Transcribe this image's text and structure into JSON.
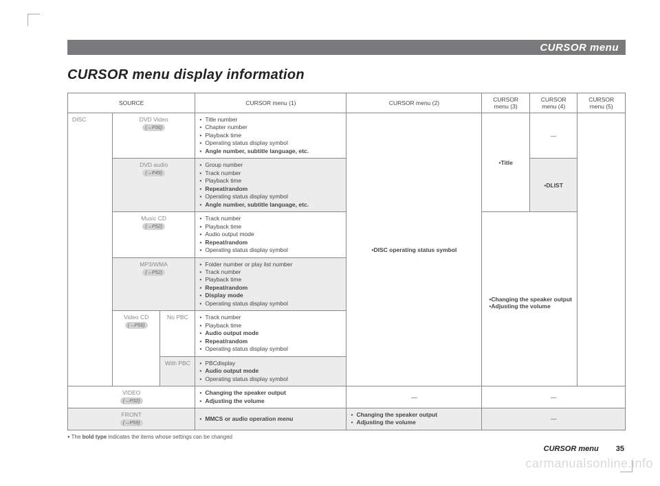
{
  "header": {
    "title": "CURSOR menu"
  },
  "page_title": "CURSOR menu display information",
  "table": {
    "headers": {
      "source": "SOURCE",
      "m1": "CURSOR menu (1)",
      "m2": "CURSOR menu (2)",
      "m3": "CURSOR\nmenu (3)",
      "m4": "CURSOR\nmenu (4)",
      "m5": "CURSOR\nmenu (5)"
    },
    "disc_label": "DISC",
    "rows": {
      "dvd_video": {
        "label": "DVD Video",
        "ref": "(→P36)",
        "m1": [
          "Title number",
          "Chapter number",
          "Playback time",
          "Operating status display symbol",
          "Angle number, subtitle language, etc."
        ],
        "m1_bold": [
          4
        ]
      },
      "dvd_audio": {
        "label": "DVD audio",
        "ref": "(→P49)",
        "m1": [
          "Group number",
          "Track number",
          "Playback time",
          "Repeat/random",
          "Operating status display symbol",
          "Angle number, subtitle language, etc."
        ],
        "m1_bold": [
          3,
          5
        ]
      },
      "music_cd": {
        "label": "Music CD",
        "ref": "(→P52)",
        "m1": [
          "Track number",
          "Playback time",
          "Audio output mode",
          "Repeat/random",
          "Operating status display symbol"
        ],
        "m1_bold": [
          3
        ]
      },
      "mp3": {
        "label": "MP3/WMA",
        "ref": "(→P52)",
        "m1": [
          "Folder number or play list number",
          "Track number",
          "Playback time",
          "Repeat/random",
          "Display mode",
          "Operating status display symbol"
        ],
        "m1_bold": [
          3,
          4
        ]
      },
      "vcd": {
        "label": "Video CD",
        "ref": "(→P56)",
        "nopbc_label": "No PBC",
        "nopbc_m1": [
          "Track number",
          "Playback time",
          "Audio output mode",
          "Repeat/random",
          "Operating status display symbol"
        ],
        "nopbc_bold": [
          2,
          3
        ],
        "withpbc_label": "With PBC",
        "withpbc_m1": [
          "PBCdisplay",
          "Audio output mode",
          "Operating status display symbol"
        ],
        "withpbc_bold": [
          1
        ]
      },
      "video": {
        "label": "VIDEO",
        "ref": "(→P32)",
        "m1": [
          "Changing the speaker output",
          "Adjusting the volume"
        ],
        "m1_bold": [
          0,
          1
        ],
        "m2": "—",
        "m345": "—"
      },
      "front": {
        "label": "FRONT",
        "ref": "(→P59)",
        "m1": [
          "MMCS or audio operation menu"
        ],
        "m1_bold": [
          0
        ],
        "m2": [
          "Changing the speaker output",
          "Adjusting the volume"
        ],
        "m2_bold": [
          0,
          1
        ],
        "m345": "—"
      }
    },
    "disc_m2": "•DISC operating status symbol",
    "m3_title": "•Title",
    "m4_dash": "—",
    "m4_dlist": "•DLIST",
    "m345_change": "•Changing the speaker output\n•Adjusting the volume"
  },
  "footnote": "The bold type indicates the items whose settings can be changed",
  "footnote_bold": "bold type",
  "footer": {
    "label": "CURSOR  menu",
    "page": "35"
  },
  "watermark": "carmanualsonline.info"
}
